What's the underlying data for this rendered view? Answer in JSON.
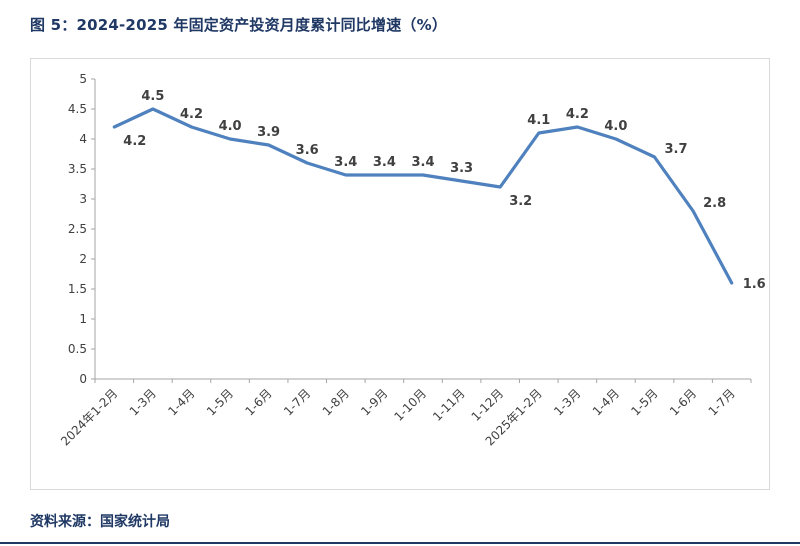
{
  "page": {
    "title": "图 5：2024-2025 年固定资产投资月度累计同比增速（%）",
    "source": "资料来源：国家统计局"
  },
  "colors": {
    "accent_navy": "#1F3864",
    "chart_border": "#D9D9D9",
    "axis_gray": "#A6A6A6"
  },
  "chart_data": {
    "type": "line",
    "title": "",
    "xlabel": "",
    "ylabel": "",
    "categories": [
      "2024年1-2月",
      "1-3月",
      "1-4月",
      "1-5月",
      "1-6月",
      "1-7月",
      "1-8月",
      "1-9月",
      "1-10月",
      "1-11月",
      "1-12月",
      "2025年1-2月",
      "1-3月",
      "1-4月",
      "1-5月",
      "1-6月",
      "1-7月"
    ],
    "values": [
      4.2,
      4.5,
      4.2,
      4.0,
      3.9,
      3.6,
      3.4,
      3.4,
      3.4,
      3.3,
      3.2,
      4.1,
      4.2,
      4.0,
      3.7,
      2.8,
      1.6
    ],
    "ylim": [
      0,
      5
    ],
    "ytick_step": 0.5,
    "ytick_labels": [
      "0",
      "0.5",
      "1",
      "1.5",
      "2",
      "2.5",
      "3",
      "3.5",
      "4",
      "4.5",
      "5"
    ],
    "grid": false,
    "legend": "none",
    "data_labels": true,
    "line_color": "#4E81BD",
    "label_color": "#404040",
    "label_positions": [
      "below-right",
      "above",
      "above",
      "above",
      "above",
      "above",
      "above",
      "above",
      "above",
      "above",
      "below-right",
      "above",
      "above",
      "above",
      "above-right",
      "above-right",
      "right"
    ]
  }
}
